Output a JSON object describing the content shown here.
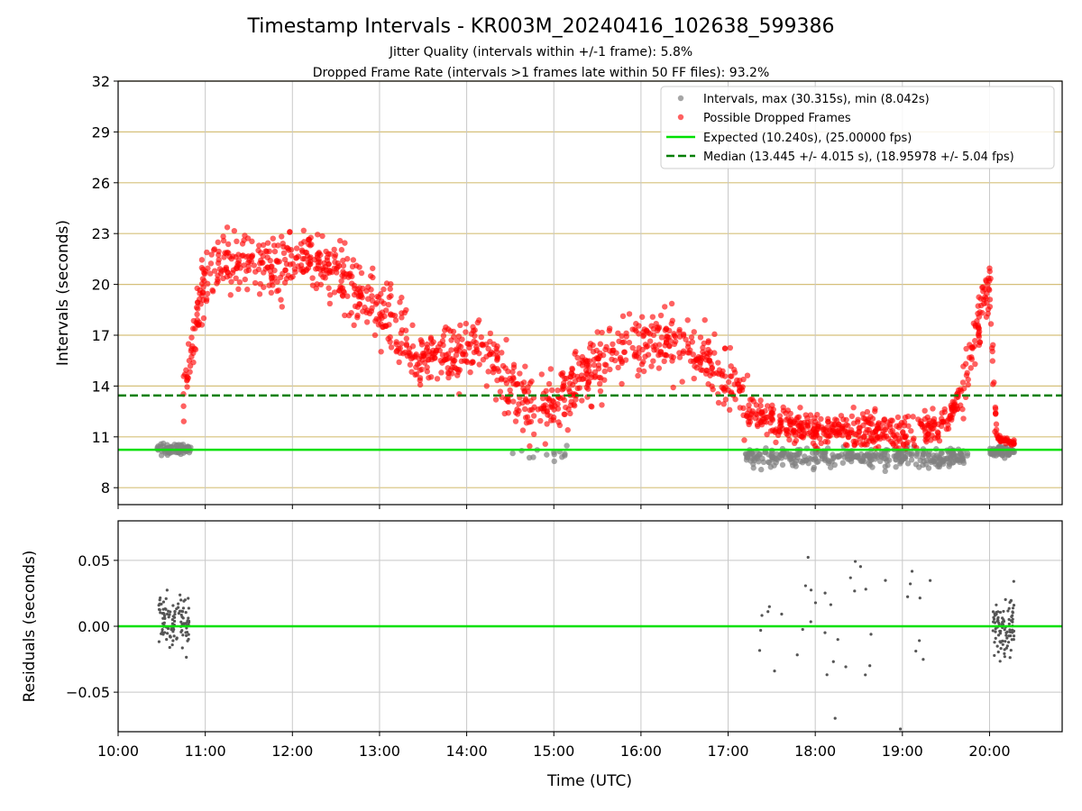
{
  "title": "Timestamp Intervals - KR003M_20240416_102638_599386",
  "subtitles": [
    "Jitter Quality (intervals within +/-1 frame): 5.8%",
    "Dropped Frame Rate (intervals >1 frames late within 50 FF files): 93.2%"
  ],
  "colors": {
    "intervals": "#808080",
    "dropped": "#ff0000",
    "expected": "#00e000",
    "median": "#007f00",
    "hgrid_top": "#d6c07a",
    "vgrid": "#c8c8c8"
  },
  "chart_data": [
    {
      "type": "scatter",
      "name": "intervals-panel",
      "ylabel": "Intervals (seconds)",
      "ylim": [
        7,
        32
      ],
      "yticks": [
        8,
        11,
        14,
        17,
        20,
        23,
        26,
        29,
        32
      ],
      "xlim": [
        "10:00",
        "20:50"
      ],
      "xticks": [
        "10:00",
        "11:00",
        "12:00",
        "13:00",
        "14:00",
        "15:00",
        "16:00",
        "17:00",
        "18:00",
        "19:00",
        "20:00"
      ],
      "grid": true,
      "legend_placement": "top-right",
      "legend": [
        "Intervals, max (30.315s), min (8.042s)",
        "Possible Dropped Frames",
        "Expected (10.240s), (25.00000 fps)",
        "Median (13.445 +/- 4.015 s), (18.95978 +/- 5.04 fps)"
      ],
      "expected_value": 10.24,
      "median_value": 13.445,
      "series": [
        {
          "name": "Intervals",
          "role": "normal",
          "segments": [
            {
              "t_start": "10:27",
              "t_end": "10:50",
              "center": 10.3,
              "spread": 0.35,
              "n": 70
            },
            {
              "t_start": "14:27",
              "t_end": "15:10",
              "center": 10.0,
              "spread": 0.45,
              "n": 14
            },
            {
              "t_start": "17:12",
              "t_end": "19:45",
              "center": 9.8,
              "spread": 0.6,
              "n": 340
            },
            {
              "t_start": "20:00",
              "t_end": "20:17",
              "center": 10.2,
              "spread": 0.3,
              "n": 70
            }
          ],
          "min": 8.042,
          "max": 30.315
        },
        {
          "name": "Possible Dropped Frames",
          "role": "dropped",
          "curve": [
            [
              "10:45",
              12.8
            ],
            [
              "10:50",
              16.0
            ],
            [
              "11:00",
              20.5
            ],
            [
              "11:10",
              21.8
            ],
            [
              "11:30",
              21.2
            ],
            [
              "11:50",
              21.0
            ],
            [
              "12:10",
              21.8
            ],
            [
              "12:30",
              20.5
            ],
            [
              "12:50",
              19.5
            ],
            [
              "13:10",
              17.5
            ],
            [
              "13:30",
              15.5
            ],
            [
              "13:50",
              15.8
            ],
            [
              "14:10",
              16.5
            ],
            [
              "14:25",
              14.5
            ],
            [
              "14:45",
              12.8
            ],
            [
              "15:00",
              13.0
            ],
            [
              "15:20",
              14.5
            ],
            [
              "15:40",
              16.0
            ],
            [
              "16:00",
              16.5
            ],
            [
              "16:20",
              16.8
            ],
            [
              "16:40",
              16.0
            ],
            [
              "17:00",
              14.8
            ],
            [
              "17:15",
              12.5
            ],
            [
              "17:40",
              11.5
            ],
            [
              "18:00",
              11.5
            ],
            [
              "18:30",
              11.3
            ],
            [
              "19:00",
              11.2
            ],
            [
              "19:30",
              11.8
            ],
            [
              "19:45",
              14.5
            ],
            [
              "19:55",
              19.0
            ],
            [
              "20:00",
              20.0
            ],
            [
              "20:05",
              11.0
            ],
            [
              "20:17",
              10.6
            ]
          ],
          "spread": 1.9
        }
      ]
    },
    {
      "type": "scatter",
      "name": "residuals-panel",
      "xlabel": "Time (UTC)",
      "ylabel": "Residuals (seconds)",
      "ylim": [
        -0.08,
        0.08
      ],
      "yticks": [
        0.05,
        0.0,
        -0.05
      ],
      "ytick_labels": [
        "0.05",
        "0.00",
        "−0.05"
      ],
      "xlim": [
        "10:00",
        "20:50"
      ],
      "xticks": [
        "10:00",
        "11:00",
        "12:00",
        "13:00",
        "14:00",
        "15:00",
        "16:00",
        "17:00",
        "18:00",
        "19:00",
        "20:00"
      ],
      "grid": true,
      "zero_line": 0.0,
      "series": [
        {
          "name": "Residuals",
          "segments": [
            {
              "t_start": "10:28",
              "t_end": "10:49",
              "center": 0.005,
              "spread": 0.02,
              "n": 110
            },
            {
              "t_start": "17:20",
              "t_end": "19:25",
              "center": 0.0,
              "spread": 0.07,
              "n": 40
            },
            {
              "t_start": "20:02",
              "t_end": "20:17",
              "center": 0.0,
              "spread": 0.025,
              "n": 90
            }
          ]
        }
      ]
    }
  ]
}
